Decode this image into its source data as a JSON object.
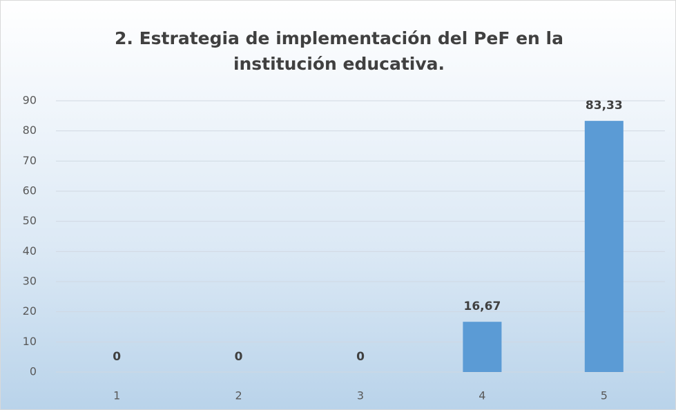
{
  "chart_data": {
    "type": "bar",
    "title": "2. Estrategia de implementación del PeF en la institución educativa.",
    "categories": [
      "1",
      "2",
      "3",
      "4",
      "5"
    ],
    "values": [
      0,
      0,
      0,
      16.67,
      83.33
    ],
    "value_labels": [
      "0",
      "0",
      "0",
      "16,67",
      "83,33"
    ],
    "color": "#5b9bd5",
    "ylim": [
      0,
      90
    ],
    "yticks": [
      0,
      10,
      20,
      30,
      40,
      50,
      60,
      70,
      80,
      90
    ],
    "grid": true
  }
}
